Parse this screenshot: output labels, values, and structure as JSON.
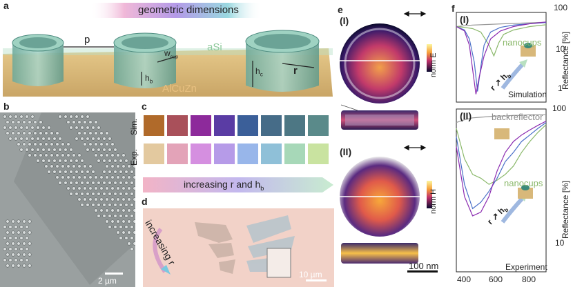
{
  "panels": {
    "a": {
      "label": "a",
      "banner": "geometric dimensions",
      "p_label": "p",
      "w_label": "w",
      "w_sub": "cup",
      "hb_label": "h",
      "hb_sub": "b",
      "hc_label": "h",
      "hc_sub": "c",
      "r_label": "r",
      "asi_label": "aSi",
      "substrate_label": "AlCuZn"
    },
    "b": {
      "label": "b",
      "scalebar": "2 µm"
    },
    "c": {
      "label": "c",
      "row_sim": "Sim.",
      "row_exp": "Exp.",
      "sim_colors": [
        "#b06a2a",
        "#a9505a",
        "#8d2a9b",
        "#5a3ca4",
        "#3b5f99",
        "#466c88",
        "#4d7784",
        "#5a8a8a"
      ],
      "exp_colors": [
        "#e3c99f",
        "#e3a3b8",
        "#d58fe0",
        "#b69be8",
        "#98b6ea",
        "#8fc0d8",
        "#a7d8b8",
        "#c9e3a0"
      ],
      "arrow_text": "increasing r and h",
      "arrow_sub": "b"
    },
    "d": {
      "label": "d",
      "arrow_text": "increasing r",
      "scalebar": "10 µm"
    },
    "e": {
      "label": "e",
      "sub_i": "(I)",
      "sub_ii": "(II)",
      "cbar_e": "norm E",
      "cbar_h": "norm H",
      "scalebar": "100 nm"
    },
    "f": {
      "label": "f",
      "sub_i": "(I)",
      "sub_ii": "(II)",
      "caption_top": "Simulation",
      "caption_bottom": "Experiment",
      "legend_nanocups_top": "nanocups",
      "legend_nanocups_bottom": "nanocups",
      "legend_backreflector": "backreflector",
      "arrow_r": "r",
      "arrow_h": "h",
      "arrow_hsub": "b",
      "ylabel_top": "Reflectance [%]",
      "ylabel_bottom": "Reflectance [%]",
      "yticks_top": [
        "100",
        "10",
        "1"
      ],
      "yticks_bottom": [
        "100",
        "10"
      ],
      "xticks": [
        "400",
        "600",
        "800"
      ]
    }
  },
  "chart_data": [
    {
      "type": "line",
      "name": "f-I",
      "x_range": [
        350,
        900
      ],
      "y_scale": "log",
      "y_range": [
        0.3,
        100
      ],
      "series": [
        {
          "color": "#999999",
          "x": [
            350,
            400,
            450,
            500,
            550,
            600,
            650,
            700,
            750,
            800,
            850,
            900
          ],
          "y": [
            40,
            42,
            44,
            45,
            46,
            47,
            48,
            49,
            50,
            51,
            52,
            53
          ]
        },
        {
          "color": "#8ab86a",
          "x": [
            350,
            400,
            450,
            500,
            550,
            580,
            610,
            640,
            700,
            800,
            900
          ],
          "y": [
            40,
            38,
            35,
            28,
            12,
            6,
            14,
            24,
            32,
            40,
            45
          ]
        },
        {
          "color": "#4a6fc8",
          "x": [
            350,
            400,
            430,
            460,
            480,
            500,
            520,
            560,
            620,
            700,
            800,
            900
          ],
          "y": [
            40,
            32,
            18,
            4,
            0.6,
            3,
            12,
            28,
            38,
            44,
            48,
            52
          ]
        },
        {
          "color": "#8a2ab0",
          "x": [
            350,
            400,
            430,
            450,
            470,
            490,
            520,
            560,
            620,
            700,
            800,
            900
          ],
          "y": [
            40,
            30,
            12,
            2.5,
            0.5,
            1.5,
            6,
            18,
            30,
            40,
            48,
            54
          ]
        }
      ]
    },
    {
      "type": "line",
      "name": "f-II",
      "x_range": [
        350,
        900
      ],
      "y_scale": "log",
      "y_range": [
        5,
        100
      ],
      "series": [
        {
          "color": "#999999",
          "x": [
            350,
            400,
            450,
            500,
            550,
            600,
            650,
            700,
            750,
            800,
            850,
            900
          ],
          "y": [
            78,
            82,
            85,
            86,
            87,
            88,
            88,
            89,
            89,
            90,
            90,
            90
          ]
        },
        {
          "color": "#8ab86a",
          "x": [
            350,
            400,
            450,
            500,
            550,
            600,
            650,
            700,
            750,
            800,
            850,
            900
          ],
          "y": [
            70,
            40,
            30,
            28,
            25,
            27,
            30,
            35,
            45,
            55,
            65,
            75
          ]
        },
        {
          "color": "#4a6fc8",
          "x": [
            350,
            400,
            450,
            500,
            550,
            600,
            650,
            700,
            750,
            800,
            850,
            900
          ],
          "y": [
            60,
            25,
            16,
            18,
            22,
            28,
            38,
            45,
            55,
            62,
            70,
            78
          ]
        },
        {
          "color": "#8a2ab0",
          "x": [
            350,
            400,
            450,
            500,
            550,
            600,
            650,
            700,
            750,
            800,
            850,
            900
          ],
          "y": [
            50,
            20,
            14,
            15,
            20,
            32,
            45,
            55,
            62,
            68,
            74,
            80
          ]
        }
      ]
    }
  ]
}
